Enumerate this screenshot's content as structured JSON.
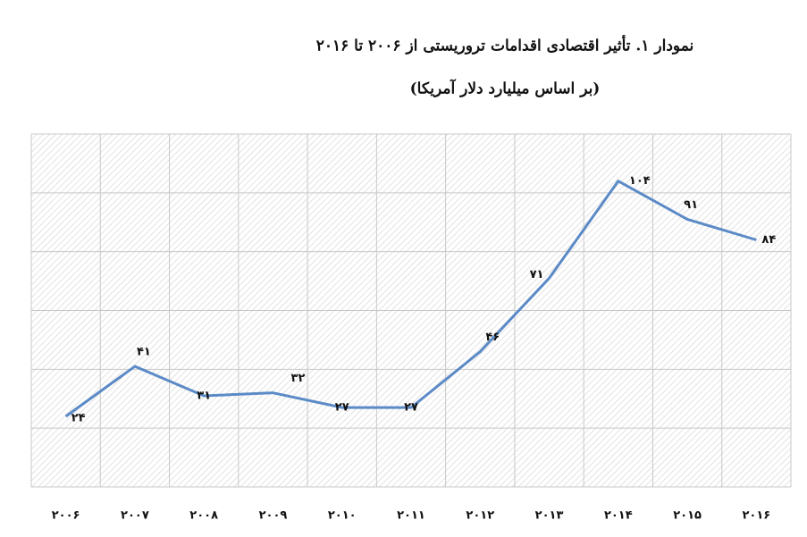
{
  "chart_data": {
    "type": "line",
    "title": "نمودار ۱. تأثیر اقتصادی اقدامات تروریستی از ۲۰۰۶ تا ۲۰۱۶",
    "subtitle": "(بر اساس میلیارد دلار آمریکا)",
    "categories": [
      "۲۰۰۶",
      "۲۰۰۷",
      "۲۰۰۸",
      "۲۰۰۹",
      "۲۰۱۰",
      "۲۰۱۱",
      "۲۰۱۲",
      "۲۰۱۳",
      "۲۰۱۴",
      "۲۰۱۵",
      "۲۰۱۶"
    ],
    "series": [
      {
        "color": "#5b8ac6",
        "values": [
          24,
          41,
          31,
          32,
          27,
          27,
          46,
          71,
          104,
          91,
          84
        ],
        "value_labels": [
          "۲۴",
          "۴۱",
          "۳۱",
          "۳۲",
          "۲۷",
          "۲۷",
          "۴۶",
          "۷۱",
          "۱۰۴",
          "۹۱",
          "۸۴"
        ]
      }
    ],
    "ylim": [
      0,
      120
    ],
    "yticks": [
      0,
      20,
      40,
      60,
      80,
      100,
      120
    ],
    "grid": true
  }
}
